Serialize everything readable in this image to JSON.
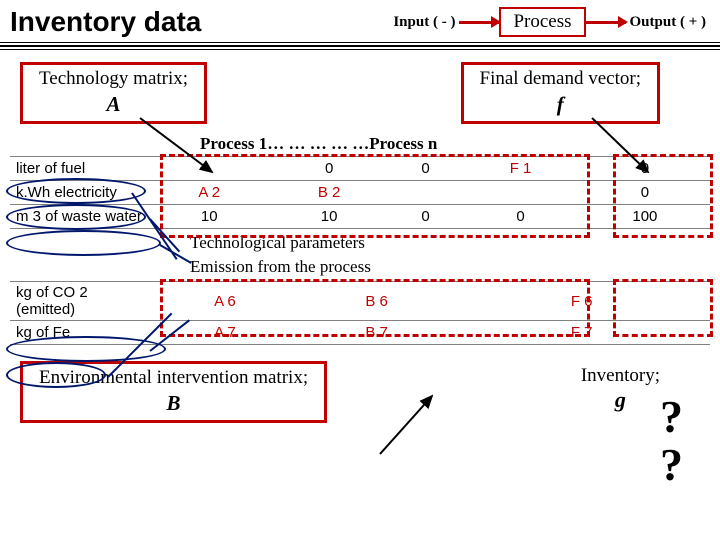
{
  "title": "Inventory data",
  "io": {
    "input_label": "Input ( - )",
    "process_label": "Process",
    "output_label": "Output ( + )"
  },
  "tech_matrix": {
    "text": "Technology matrix;",
    "symbol": "A"
  },
  "final_demand": {
    "text": "Final demand vector;",
    "symbol": "f"
  },
  "process_span": "Process 1… … … … …Process n",
  "table_A": {
    "rows": [
      {
        "label": "liter of fuel",
        "c1": "",
        "c2": "0",
        "c3": "0",
        "c4": "F 1",
        "c5": "0"
      },
      {
        "label": "k.Wh electricity",
        "c1": "A 2",
        "c2": "B 2",
        "c3": "",
        "c4": "",
        "c5": "0"
      },
      {
        "label": "m 3 of waste water",
        "c1": "10",
        "c2": "10",
        "c3": "0",
        "c4": "0",
        "c5": "100"
      }
    ]
  },
  "anno_tech": "Technological parameters",
  "anno_emis": "Emission from the process",
  "table_B": {
    "rows": [
      {
        "label": "kg of CO 2 (emitted)",
        "c1": "A 6",
        "c2": "B 6",
        "c3": "",
        "c4": "F 6",
        "c5": ""
      },
      {
        "label": "kg of Fe",
        "c1": "A 7",
        "c2": "B 7",
        "c3": "",
        "c4": "F 7",
        "c5": ""
      }
    ]
  },
  "env_matrix": {
    "text": "Environmental intervention matrix;",
    "symbol": "B"
  },
  "inventory": {
    "text": "Inventory;",
    "symbol": "g"
  },
  "q1": "?",
  "q2": "?",
  "colors": {
    "accent_red": "#c00000",
    "navy": "#00176b",
    "grid": "#808080"
  }
}
